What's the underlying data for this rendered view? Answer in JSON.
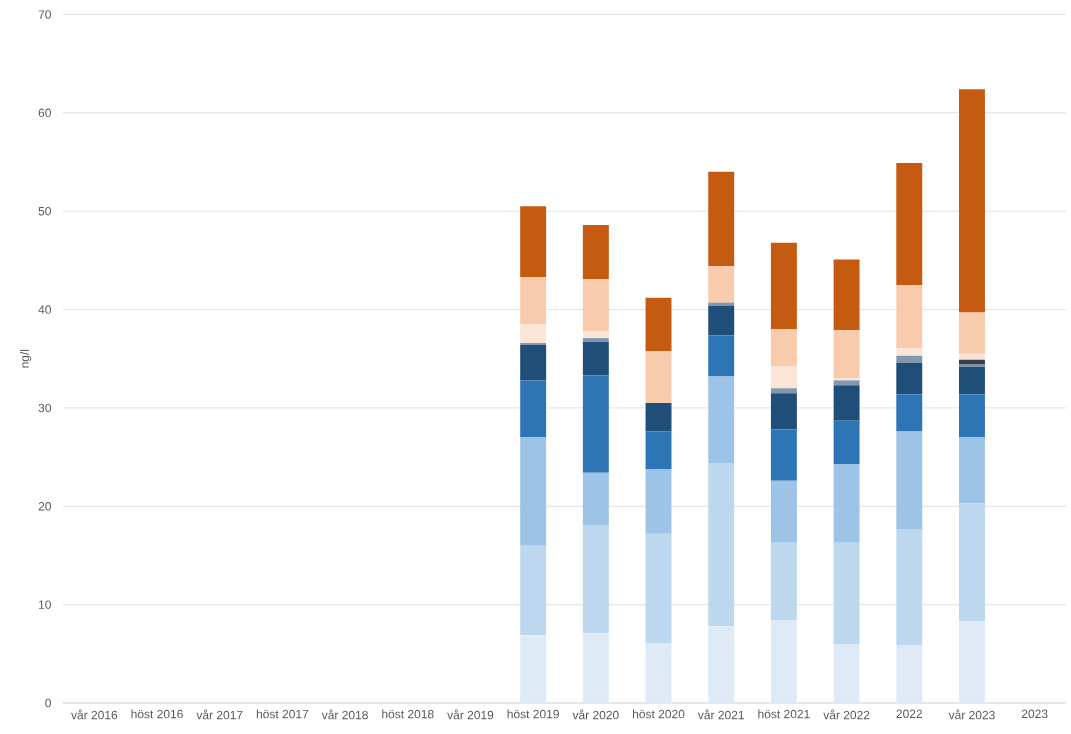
{
  "chart_data": {
    "type": "bar",
    "stacked": true,
    "ylabel": "ng/l",
    "categories": [
      "vår 2016",
      "höst 2016",
      "vår 2017",
      "höst 2017",
      "vår 2018",
      "höst 2018",
      "vår 2019",
      "höst 2019",
      "vår 2020",
      "höst 2020",
      "vår 2021",
      "höst 2021",
      "vår 2022",
      "2022",
      "vår 2023",
      "2023"
    ],
    "series": [
      {
        "color": "#deebf7",
        "values": [
          null,
          null,
          null,
          null,
          null,
          null,
          null,
          6.9,
          7.1,
          6.1,
          7.8,
          8.4,
          6.0,
          5.9,
          8.3,
          null
        ]
      },
      {
        "color": "#bdd7ee",
        "values": [
          null,
          null,
          null,
          null,
          null,
          null,
          null,
          9.1,
          11.0,
          11.1,
          16.6,
          7.9,
          10.3,
          11.8,
          12.0,
          null
        ]
      },
      {
        "color": "#9dc3e6",
        "values": [
          null,
          null,
          null,
          null,
          null,
          null,
          null,
          11.0,
          5.3,
          6.6,
          8.8,
          6.3,
          8.0,
          9.9,
          6.7,
          null
        ]
      },
      {
        "color": "#2e75b6",
        "values": [
          null,
          null,
          null,
          null,
          null,
          null,
          null,
          5.8,
          9.9,
          3.8,
          4.2,
          5.2,
          4.4,
          3.8,
          4.4,
          null
        ]
      },
      {
        "color": "#1f4e79",
        "values": [
          null,
          null,
          null,
          null,
          null,
          null,
          null,
          3.6,
          3.4,
          2.9,
          3.0,
          3.7,
          3.6,
          3.2,
          2.8,
          null
        ]
      },
      {
        "color": "#8497b0",
        "values": [
          null,
          null,
          null,
          null,
          null,
          null,
          null,
          0.2,
          0.4,
          null,
          0.3,
          0.5,
          0.5,
          0.7,
          0.2,
          null
        ]
      },
      {
        "color": "#323f4f",
        "values": [
          null,
          null,
          null,
          null,
          null,
          null,
          null,
          null,
          null,
          null,
          null,
          null,
          null,
          null,
          0.5,
          null
        ]
      },
      {
        "color": "#fbe5d6",
        "values": [
          null,
          null,
          null,
          null,
          null,
          null,
          null,
          1.9,
          0.7,
          null,
          null,
          2.2,
          0.2,
          0.8,
          0.6,
          null
        ]
      },
      {
        "color": "#f8cbad",
        "values": [
          null,
          null,
          null,
          null,
          null,
          null,
          null,
          4.8,
          5.3,
          5.3,
          3.7,
          3.8,
          4.9,
          6.4,
          4.2,
          null
        ]
      },
      {
        "color": "#c55a11",
        "values": [
          null,
          null,
          null,
          null,
          null,
          null,
          null,
          7.2,
          5.5,
          5.4,
          9.6,
          8.8,
          7.2,
          12.4,
          22.7,
          null
        ]
      }
    ],
    "ylim": [
      0,
      70
    ],
    "yticks": [
      0,
      10,
      20,
      30,
      40,
      50,
      60,
      70
    ],
    "grid": "y"
  }
}
